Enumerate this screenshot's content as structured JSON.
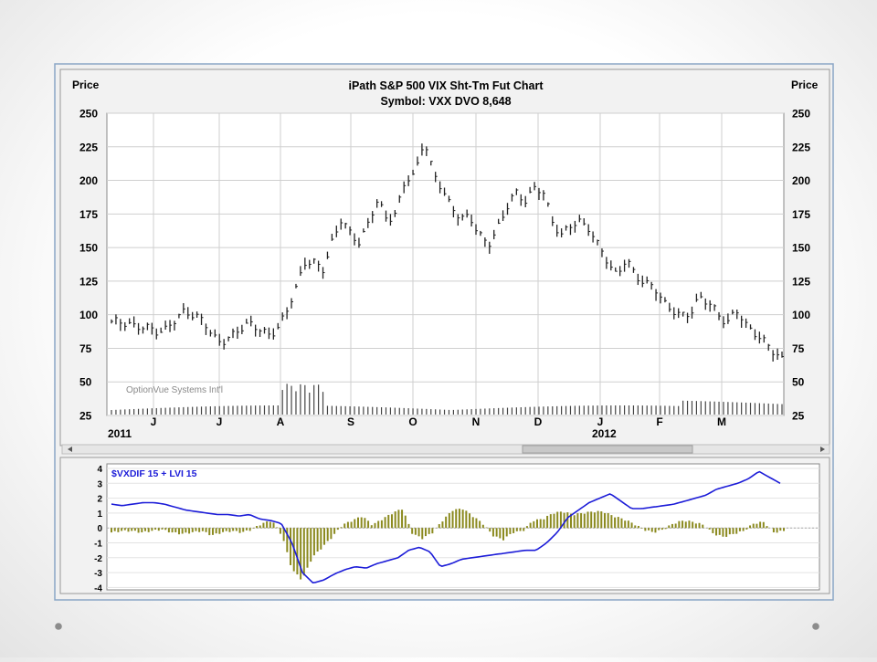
{
  "chart_data": [
    {
      "type": "ohlc",
      "title": "iPath S&P 500 VIX Sht-Tm Fut Chart",
      "subtitle": "Symbol: VXX  DVO 8,648",
      "ylabel_left": "Price",
      "ylabel_right": "Price",
      "watermark": "OptionVue Systems Int'l",
      "ylim": [
        25,
        250
      ],
      "yticks": [
        "250",
        "225",
        "200",
        "175",
        "150",
        "125",
        "100",
        "75",
        "50",
        "25"
      ],
      "month_labels": [
        "J",
        "J",
        "A",
        "S",
        "O",
        "N",
        "D",
        "J",
        "F",
        "M"
      ],
      "year_labels": [
        "2011",
        "2012"
      ],
      "price_series": [
        95,
        93,
        94,
        91,
        89,
        88,
        90,
        95,
        104,
        100,
        94,
        85,
        80,
        82,
        90,
        95,
        88,
        85,
        90,
        100,
        118,
        140,
        138,
        133,
        155,
        170,
        160,
        155,
        168,
        185,
        172,
        175,
        200,
        205,
        230,
        205,
        195,
        180,
        170,
        175,
        160,
        150,
        165,
        180,
        190,
        185,
        195,
        190,
        170,
        160,
        165,
        170,
        165,
        150,
        140,
        130,
        140,
        130,
        125,
        120,
        110,
        105,
        98,
        100,
        115,
        108,
        100,
        95,
        103,
        92,
        88,
        80,
        72,
        68
      ],
      "volume_note": "volume bars along bottom",
      "grid": true
    },
    {
      "type": "line+bar",
      "label": "$VXDIF 15 + LVI 15",
      "ylim": [
        -4,
        4
      ],
      "yticks": [
        "4",
        "3",
        "2",
        "1",
        "0",
        "-1",
        "-2",
        "-3",
        "-4"
      ],
      "line_series": [
        1.6,
        1.5,
        1.6,
        1.7,
        1.7,
        1.6,
        1.4,
        1.2,
        1.1,
        1.0,
        0.9,
        0.9,
        0.8,
        0.9,
        0.6,
        0.5,
        0.3,
        -1.0,
        -3.0,
        -3.7,
        -3.5,
        -3.1,
        -2.8,
        -2.6,
        -2.7,
        -2.4,
        -2.2,
        -2.0,
        -1.5,
        -1.3,
        -1.6,
        -2.6,
        -2.4,
        -2.1,
        -2.0,
        -1.9,
        -1.8,
        -1.7,
        -1.6,
        -1.5,
        -1.5,
        -1.0,
        -0.3,
        0.7,
        1.2,
        1.7,
        2.0,
        2.3,
        1.8,
        1.3,
        1.3,
        1.4,
        1.5,
        1.6,
        1.8,
        2.0,
        2.2,
        2.6,
        2.8,
        3.0,
        3.3,
        3.8,
        3.4,
        3.0
      ],
      "bar_series": [
        -0.3,
        -0.2,
        -0.2,
        -0.3,
        -0.2,
        -0.1,
        -0.3,
        -0.4,
        -0.3,
        -0.2,
        -0.5,
        -0.3,
        -0.2,
        -0.3,
        -0.1,
        0.3,
        0.5,
        -0.5,
        -2.8,
        -3.5,
        -2.0,
        -1.3,
        -0.6,
        0.2,
        0.5,
        0.8,
        0.2,
        0.6,
        1.0,
        1.3,
        -0.4,
        -0.7,
        -0.3,
        0.5,
        1.2,
        1.3,
        0.8,
        0.3,
        -0.5,
        -0.8,
        -0.3,
        -0.2,
        0.5,
        0.6,
        1.0,
        1.1,
        0.9,
        1.0,
        1.1,
        1.1,
        0.8,
        0.6,
        0.3,
        -0.1,
        -0.3,
        -0.1,
        0.3,
        0.5,
        0.4,
        0.2,
        -0.4,
        -0.6,
        -0.4,
        -0.2,
        0.3,
        0.4,
        -0.3,
        -0.2
      ],
      "line_color": "#1c1cd8",
      "bar_color": "#8b8a1f"
    }
  ],
  "colors": {
    "panel_bg": "#f0f0f0",
    "plot_bg": "#ffffff",
    "grid": "#cfcfcf",
    "price_bars": "#222222",
    "scrollbar_thumb": "#c8c8c8"
  },
  "icons": [
    "scroll-left-icon",
    "scroll-right-icon"
  ]
}
